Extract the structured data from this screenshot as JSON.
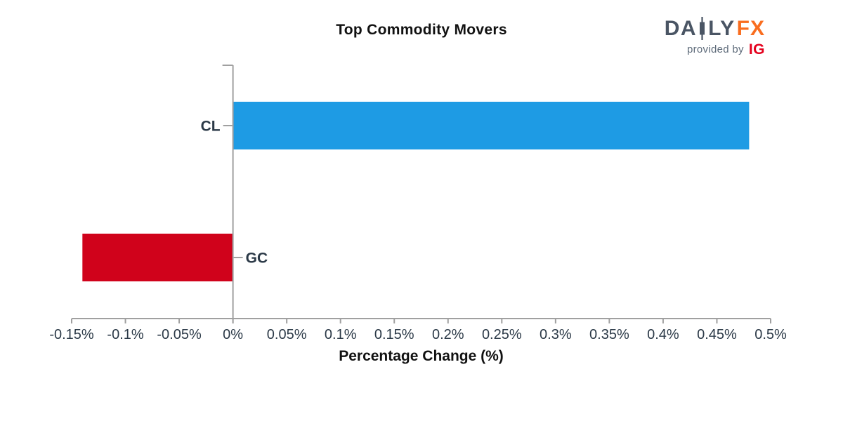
{
  "header": {
    "title": "Top Commodity Movers"
  },
  "logo": {
    "brand_part1": "DA",
    "brand_part2": "LY",
    "brand_part3": "FX",
    "provided_by": "provided by",
    "ig": "IG",
    "brand_color": "#4a5564",
    "fx_color": "#f96d1f",
    "ig_color": "#e4001c",
    "provided_by_color": "#5e6b7a"
  },
  "chart_data": {
    "type": "bar",
    "orientation": "horizontal",
    "title": "Top Commodity Movers",
    "categories": [
      "CL",
      "GC"
    ],
    "values": [
      0.48,
      -0.14
    ],
    "bar_colors": [
      "#1e9be4",
      "#d0021b"
    ],
    "xlabel": "Percentage Change (%)",
    "xlim": [
      -0.15,
      0.5
    ],
    "x_ticks": [
      -0.15,
      -0.1,
      -0.05,
      0,
      0.05,
      0.1,
      0.15,
      0.2,
      0.25,
      0.3,
      0.35,
      0.4,
      0.45,
      0.5
    ],
    "x_tick_labels": [
      "-0.15%",
      "-0.1%",
      "-0.05%",
      "0%",
      "0.05%",
      "0.1%",
      "0.15%",
      "0.2%",
      "0.25%",
      "0.3%",
      "0.35%",
      "0.4%",
      "0.45%",
      "0.5%"
    ],
    "grid": false,
    "legend": null,
    "axis_color": "#a0a0a0",
    "tick_label_color": "#2b3947"
  }
}
